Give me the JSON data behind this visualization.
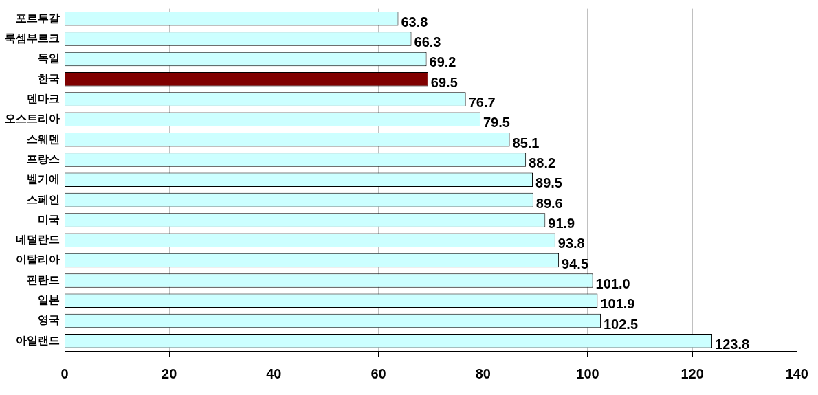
{
  "chart_data": {
    "type": "bar",
    "orientation": "horizontal",
    "categories": [
      "포르투갈",
      "룩셈부르크",
      "독일",
      "한국",
      "덴마크",
      "오스트리아",
      "스웨덴",
      "프랑스",
      "벨기에",
      "스페인",
      "미국",
      "네덜란드",
      "이탈리아",
      "핀란드",
      "일본",
      "영국",
      "아일랜드"
    ],
    "values": [
      63.8,
      66.3,
      69.2,
      69.5,
      76.7,
      79.5,
      85.1,
      88.2,
      89.5,
      89.6,
      91.9,
      93.8,
      94.5,
      101.0,
      101.9,
      102.5,
      123.8
    ],
    "colors": [
      "#ccffff",
      "#ccffff",
      "#ccffff",
      "#800000",
      "#ccffff",
      "#ccffff",
      "#ccffff",
      "#ccffff",
      "#ccffff",
      "#ccffff",
      "#ccffff",
      "#ccffff",
      "#ccffff",
      "#ccffff",
      "#ccffff",
      "#ccffff",
      "#ccffff"
    ],
    "value_labels": [
      "63.8",
      "66.3",
      "69.2",
      "69.5",
      "76.7",
      "79.5",
      "85.1",
      "88.2",
      "89.5",
      "89.6",
      "91.9",
      "93.8",
      "94.5",
      "101.0",
      "101.9",
      "102.5",
      "123.8"
    ],
    "xlim": [
      0,
      140
    ],
    "xticks": [
      0,
      20,
      40,
      60,
      80,
      100,
      120,
      140
    ],
    "grid": "x",
    "legend": false
  }
}
